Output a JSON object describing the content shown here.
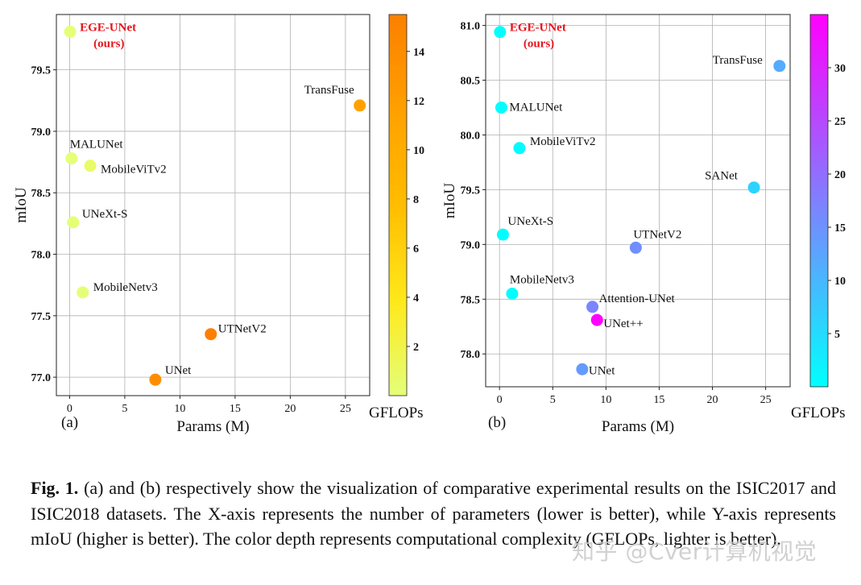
{
  "chart_data": [
    {
      "type": "scatter",
      "panel_label": "(a)",
      "xlabel": "Params (M)",
      "ylabel": "mIoU",
      "xlim": [
        -1.2,
        27.2
      ],
      "ylim": [
        76.85,
        79.95
      ],
      "xticks": [
        0,
        5,
        10,
        15,
        20,
        25
      ],
      "yticks": [
        77.0,
        77.5,
        78.0,
        78.5,
        79.0,
        79.5
      ],
      "grid": true,
      "colorbar": {
        "label": "GFLOPs",
        "min": 0.0,
        "max": 15.5,
        "ticks": [
          2,
          4,
          6,
          8,
          10,
          12,
          14
        ],
        "colormap": "Wistia"
      },
      "points": [
        {
          "name": "EGE-UNet",
          "sub": "(ours)",
          "x": 0.05,
          "y": 79.81,
          "gflops": 0.072,
          "highlight": true
        },
        {
          "name": "TransFuse",
          "x": 26.3,
          "y": 79.21,
          "gflops": 11.5
        },
        {
          "name": "MALUNet",
          "x": 0.17,
          "y": 78.78,
          "gflops": 0.083
        },
        {
          "name": "MobileViTv2",
          "x": 1.87,
          "y": 78.72,
          "gflops": 0.7
        },
        {
          "name": "UNeXt-S",
          "x": 0.32,
          "y": 78.26,
          "gflops": 0.1
        },
        {
          "name": "MobileNetv3",
          "x": 1.19,
          "y": 77.69,
          "gflops": 0.1
        },
        {
          "name": "UTNetV2",
          "x": 12.8,
          "y": 77.35,
          "gflops": 15.5
        },
        {
          "name": "UNet",
          "x": 7.77,
          "y": 76.98,
          "gflops": 13.78
        }
      ]
    },
    {
      "type": "scatter",
      "panel_label": "(b)",
      "xlabel": "Params (M)",
      "ylabel": "mIoU",
      "xlim": [
        -1.3,
        27.3
      ],
      "ylim": [
        77.7,
        81.1
      ],
      "xticks": [
        0,
        5,
        10,
        15,
        20,
        25
      ],
      "yticks": [
        78.0,
        78.5,
        79.0,
        79.5,
        80.0,
        80.5,
        81.0
      ],
      "grid": true,
      "colorbar": {
        "label": "GFLOPs",
        "min": 0.0,
        "max": 35.0,
        "ticks": [
          5,
          10,
          15,
          20,
          25,
          30
        ],
        "colormap": "cool"
      },
      "points": [
        {
          "name": "EGE-UNet",
          "sub": "(ours)",
          "x": 0.05,
          "y": 80.94,
          "gflops": 0.072,
          "highlight": true
        },
        {
          "name": "TransFuse",
          "x": 26.3,
          "y": 80.63,
          "gflops": 11.5
        },
        {
          "name": "MALUNet",
          "x": 0.17,
          "y": 80.25,
          "gflops": 0.083
        },
        {
          "name": "MobileViTv2",
          "x": 1.87,
          "y": 79.88,
          "gflops": 0.7
        },
        {
          "name": "SANet",
          "x": 23.9,
          "y": 79.52,
          "gflops": 5.99
        },
        {
          "name": "UNeXt-S",
          "x": 0.32,
          "y": 79.09,
          "gflops": 0.1
        },
        {
          "name": "UTNetV2",
          "x": 12.8,
          "y": 78.97,
          "gflops": 15.5
        },
        {
          "name": "MobileNetv3",
          "x": 1.19,
          "y": 78.55,
          "gflops": 0.1
        },
        {
          "name": "Attention-UNet",
          "x": 8.73,
          "y": 78.43,
          "gflops": 16.74
        },
        {
          "name": "UNet++",
          "x": 9.16,
          "y": 78.31,
          "gflops": 34.9
        },
        {
          "name": "UNet",
          "x": 7.77,
          "y": 77.86,
          "gflops": 13.78
        }
      ]
    }
  ],
  "caption": {
    "label": "Fig. 1.",
    "text": " (a) and (b) respectively show the visualization of comparative experimental results on the ISIC2017 and ISIC2018 datasets. The X-axis represents the number of parameters (lower is better), while Y-axis represents mIoU (higher is better). The color depth represents computational complexity (GFLOPs, lighter is better)."
  },
  "watermark": "知乎 @Cver计算机视觉",
  "colors": {
    "highlight": "#e8141e",
    "grid": "#b0b0b0",
    "text": "#111111"
  }
}
